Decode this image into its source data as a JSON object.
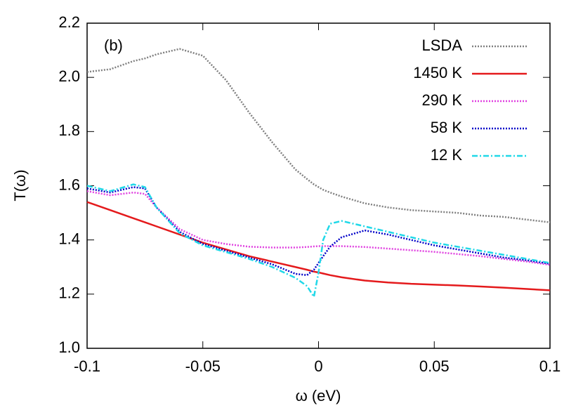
{
  "chart_data": {
    "type": "line",
    "annotation": "(b)",
    "x_label": "ω (eV)",
    "y_label": "T(ω)",
    "x": [
      -0.1,
      -0.09,
      -0.08,
      -0.075,
      -0.07,
      -0.06,
      -0.05,
      -0.04,
      -0.03,
      -0.02,
      -0.01,
      -0.005,
      -0.002,
      0,
      0.002,
      0.005,
      0.01,
      0.02,
      0.03,
      0.04,
      0.05,
      0.06,
      0.07,
      0.08,
      0.09,
      0.1
    ],
    "series": [
      {
        "name": "LSDA",
        "color": "#808080",
        "dash": "dotted",
        "values": [
          2.02,
          2.03,
          2.06,
          2.07,
          2.085,
          2.105,
          2.08,
          1.99,
          1.87,
          1.76,
          1.66,
          1.625,
          1.605,
          1.595,
          1.585,
          1.575,
          1.56,
          1.535,
          1.52,
          1.51,
          1.505,
          1.5,
          1.49,
          1.485,
          1.475,
          1.465
        ]
      },
      {
        "name": "1450 K",
        "color": "#e41a1c",
        "dash": "solid",
        "values": [
          1.54,
          1.51,
          1.48,
          1.465,
          1.45,
          1.42,
          1.39,
          1.365,
          1.34,
          1.32,
          1.3,
          1.29,
          1.283,
          1.28,
          1.276,
          1.27,
          1.262,
          1.25,
          1.243,
          1.238,
          1.235,
          1.232,
          1.228,
          1.224,
          1.219,
          1.214
        ]
      },
      {
        "name": "290 K",
        "color": "#e040e0",
        "dash": "dotted",
        "values": [
          1.58,
          1.565,
          1.575,
          1.57,
          1.52,
          1.44,
          1.4,
          1.385,
          1.375,
          1.372,
          1.372,
          1.374,
          1.376,
          1.377,
          1.377,
          1.377,
          1.377,
          1.374,
          1.368,
          1.362,
          1.356,
          1.348,
          1.34,
          1.33,
          1.32,
          1.308
        ]
      },
      {
        "name": "58 K",
        "color": "#0000c8",
        "dash": "dotted",
        "values": [
          1.59,
          1.575,
          1.595,
          1.59,
          1.52,
          1.43,
          1.385,
          1.36,
          1.335,
          1.31,
          1.275,
          1.27,
          1.29,
          1.315,
          1.34,
          1.375,
          1.41,
          1.435,
          1.42,
          1.4,
          1.38,
          1.365,
          1.35,
          1.335,
          1.325,
          1.312
        ]
      },
      {
        "name": "12 K",
        "color": "#20d8e8",
        "dash": "dashdot",
        "values": [
          1.6,
          1.58,
          1.605,
          1.595,
          1.52,
          1.425,
          1.38,
          1.355,
          1.33,
          1.3,
          1.26,
          1.23,
          1.19,
          1.28,
          1.4,
          1.46,
          1.47,
          1.45,
          1.43,
          1.41,
          1.39,
          1.375,
          1.36,
          1.345,
          1.33,
          1.315
        ]
      }
    ],
    "xlim": [
      -0.1,
      0.1
    ],
    "xticks": [
      -0.1,
      -0.05,
      0,
      0.05,
      0.1
    ],
    "ylim": [
      1.0,
      2.2
    ],
    "yticks": [
      {
        "value": 1.0,
        "label": "1.0"
      },
      {
        "value": 1.2,
        "label": "1.2"
      },
      {
        "value": 1.4,
        "label": "1.4"
      },
      {
        "value": 1.6,
        "label": "1.6"
      },
      {
        "value": 1.8,
        "label": "1.8"
      },
      {
        "value": 2.0,
        "label": "2.0"
      },
      {
        "value": 2.2,
        "label": "2.2"
      }
    ],
    "legend": "upper right",
    "grid": false
  }
}
